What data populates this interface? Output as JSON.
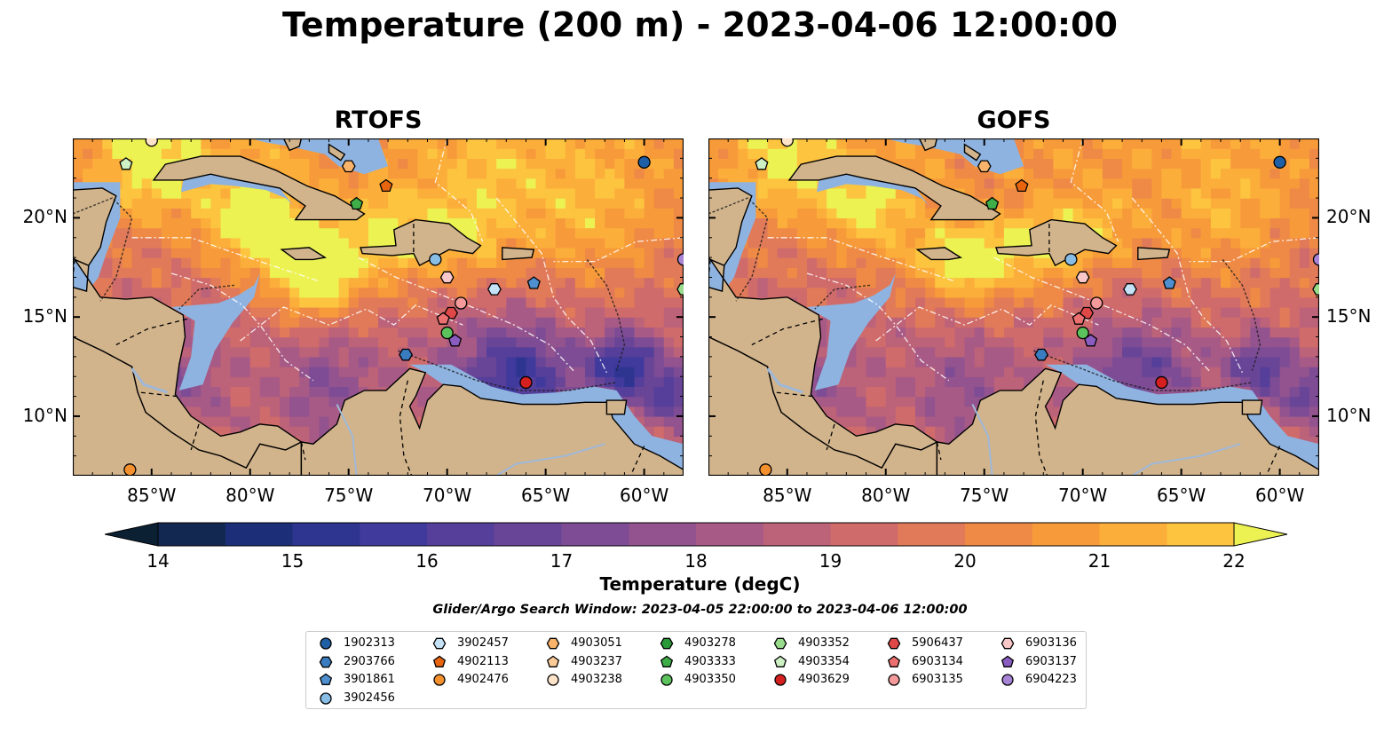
{
  "title": "Temperature (200 m) - 2023-04-06 12:00:00",
  "panels": [
    {
      "title": "RTOFS"
    },
    {
      "title": "GOFS"
    }
  ],
  "axes": {
    "lon_ticks": [
      "85°W",
      "80°W",
      "75°W",
      "70°W",
      "65°W",
      "60°W"
    ],
    "lon_values": [
      -85,
      -80,
      -75,
      -70,
      -65,
      -60
    ],
    "lat_ticks": [
      "20°N",
      "15°N",
      "10°N"
    ],
    "lat_values": [
      20,
      15,
      10
    ],
    "lon_range": [
      -89,
      -58
    ],
    "lat_range": [
      7,
      24
    ]
  },
  "colorbar": {
    "label": "Temperature (degC)",
    "ticks": [
      "14",
      "15",
      "16",
      "17",
      "18",
      "19",
      "20",
      "21",
      "22"
    ],
    "range": [
      14,
      22
    ],
    "step": 0.5,
    "extend": "both"
  },
  "search_window": "Glider/Argo Search Window: 2023-04-05 22:00:00 to 2023-04-06 12:00:00",
  "legend": [
    {
      "id": "1902313",
      "marker": "circle",
      "color": "#1f5fa6"
    },
    {
      "id": "2903766",
      "marker": "hexagon",
      "color": "#3a7cc0"
    },
    {
      "id": "3901861",
      "marker": "pentagon",
      "color": "#4f8fd0"
    },
    {
      "id": "3902456",
      "marker": "circle",
      "color": "#88bde6"
    },
    {
      "id": "3902457",
      "marker": "hexagon",
      "color": "#c6e2f7"
    },
    {
      "id": "4902113",
      "marker": "pentagon",
      "color": "#e8650f"
    },
    {
      "id": "4902476",
      "marker": "circle",
      "color": "#f4902e"
    },
    {
      "id": "4903051",
      "marker": "hexagon",
      "color": "#f9b36a"
    },
    {
      "id": "4903237",
      "marker": "pentagon",
      "color": "#fccb97"
    },
    {
      "id": "4903238",
      "marker": "circle",
      "color": "#fde3c8"
    },
    {
      "id": "4903278",
      "marker": "hexagon",
      "color": "#2a9a38"
    },
    {
      "id": "4903333",
      "marker": "pentagon",
      "color": "#3fae48"
    },
    {
      "id": "4903350",
      "marker": "circle",
      "color": "#5cc35c"
    },
    {
      "id": "4903352",
      "marker": "hexagon",
      "color": "#98dc8c"
    },
    {
      "id": "4903354",
      "marker": "pentagon",
      "color": "#cdf0c4"
    },
    {
      "id": "4903629",
      "marker": "circle",
      "color": "#d62020"
    },
    {
      "id": "5906437",
      "marker": "hexagon",
      "color": "#e04848"
    },
    {
      "id": "6903134",
      "marker": "pentagon",
      "color": "#ec7070"
    },
    {
      "id": "6903135",
      "marker": "circle",
      "color": "#f49a9a"
    },
    {
      "id": "6903136",
      "marker": "hexagon",
      "color": "#fac8c8"
    },
    {
      "id": "6903137",
      "marker": "pentagon",
      "color": "#8a5cc0"
    },
    {
      "id": "6904223",
      "marker": "circle",
      "color": "#a884d6"
    }
  ],
  "floats": [
    {
      "id": "1902313",
      "lon": -60.0,
      "lat": 22.8
    },
    {
      "id": "2903766",
      "lon": -72.1,
      "lat": 13.1
    },
    {
      "id": "3901861",
      "lon": -65.6,
      "lat": 16.7
    },
    {
      "id": "3902456",
      "lon": -70.6,
      "lat": 17.9
    },
    {
      "id": "3902457",
      "lon": -67.6,
      "lat": 16.4
    },
    {
      "id": "4902113",
      "lon": -73.1,
      "lat": 21.6
    },
    {
      "id": "4902476",
      "lon": -86.1,
      "lat": 7.3
    },
    {
      "id": "4903051",
      "lon": -75.0,
      "lat": 22.6
    },
    {
      "id": "4903238",
      "lon": -85.0,
      "lat": 23.9
    },
    {
      "id": "4903333",
      "lon": -74.6,
      "lat": 20.7
    },
    {
      "id": "4903350",
      "lon": -70.0,
      "lat": 14.2
    },
    {
      "id": "4903352",
      "lon": -58.0,
      "lat": 16.4
    },
    {
      "id": "4903354",
      "lon": -86.3,
      "lat": 22.7
    },
    {
      "id": "4903629",
      "lon": -66.0,
      "lat": 11.7
    },
    {
      "id": "5906437",
      "lon": -69.8,
      "lat": 15.2
    },
    {
      "id": "6903134",
      "lon": -70.2,
      "lat": 14.9
    },
    {
      "id": "6903135",
      "lon": -69.3,
      "lat": 15.7
    },
    {
      "id": "6903136",
      "lon": -70.0,
      "lat": 17.0
    },
    {
      "id": "6903137",
      "lon": -69.6,
      "lat": 13.8
    },
    {
      "id": "6904223",
      "lon": -58.0,
      "lat": 17.9
    }
  ]
}
